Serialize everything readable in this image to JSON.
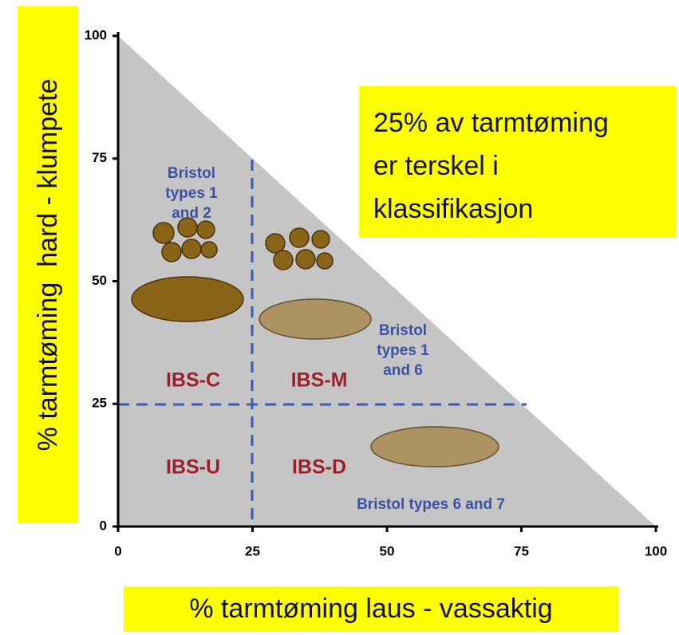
{
  "y_axis": {
    "label": "% tarmtøming  hard - klumpete",
    "ticks": [
      0,
      25,
      50,
      75,
      100
    ]
  },
  "x_axis": {
    "label": "% tarmtøming laus - vassaktig",
    "ticks": [
      0,
      25,
      50,
      75,
      100
    ]
  },
  "callout": {
    "lines": [
      "25% av tarmtøming",
      "er terskel i",
      "klassifikasjon"
    ]
  },
  "regions": [
    {
      "label": "IBS-C"
    },
    {
      "label": "IBS-M"
    },
    {
      "label": "IBS-U"
    },
    {
      "label": "IBS-D"
    }
  ],
  "bristol_notes": [
    {
      "lines": [
        "Bristol",
        "types 1",
        "and 2"
      ]
    },
    {
      "lines": [
        "Bristol",
        "types 1",
        "and 6"
      ]
    },
    {
      "lines": [
        "Bristol types 6 and 7"
      ]
    }
  ]
}
